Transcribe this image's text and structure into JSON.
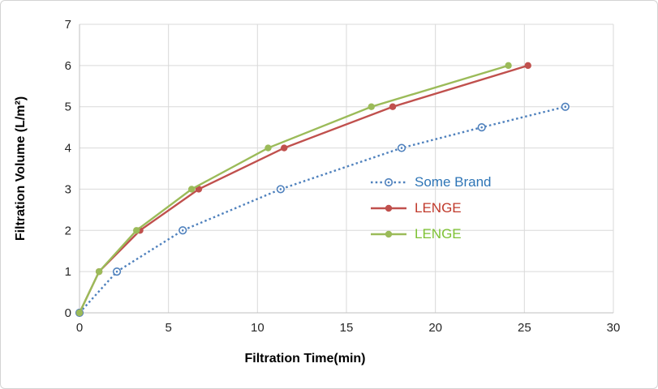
{
  "window": {
    "background": "#ffffff",
    "border_color": "#d3d3d3"
  },
  "chart_data": {
    "type": "line",
    "title": "",
    "xlabel": "Filtration Time(min)",
    "ylabel": "Filtration Volume (L/m²)",
    "xlim": [
      0,
      30
    ],
    "ylim": [
      0,
      7
    ],
    "x_ticks": [
      0,
      5,
      10,
      15,
      20,
      25,
      30
    ],
    "y_ticks": [
      0,
      1,
      2,
      3,
      4,
      5,
      6,
      7
    ],
    "grid": true,
    "legend_position": "inside-right-middle",
    "series": [
      {
        "name": "Some Brand",
        "color": "#4f81bd",
        "text_color": "#2e75b6",
        "line_style": "dotted",
        "marker": "open-circle",
        "points": [
          [
            0,
            0
          ],
          [
            2.1,
            1
          ],
          [
            5.8,
            2
          ],
          [
            11.3,
            3
          ],
          [
            18.1,
            4
          ],
          [
            22.6,
            4.5
          ],
          [
            27.3,
            5
          ]
        ]
      },
      {
        "name": "LENGE",
        "color": "#c0504d",
        "text_color": "#c0392b",
        "line_style": "solid",
        "marker": "filled-circle",
        "points": [
          [
            0,
            0
          ],
          [
            1.1,
            1
          ],
          [
            3.4,
            2
          ],
          [
            6.7,
            3
          ],
          [
            11.5,
            4
          ],
          [
            17.6,
            5
          ],
          [
            25.2,
            6
          ]
        ]
      },
      {
        "name": "LENGE",
        "color": "#9bbb59",
        "text_color": "#7ec234",
        "line_style": "solid",
        "marker": "filled-circle",
        "points": [
          [
            0,
            0
          ],
          [
            1.1,
            1
          ],
          [
            3.2,
            2
          ],
          [
            6.3,
            3
          ],
          [
            10.6,
            4
          ],
          [
            16.4,
            5
          ],
          [
            24.1,
            6
          ]
        ]
      }
    ],
    "colors": {
      "gridline": "#d9d9d9",
      "axis_line": "#bfbfbf",
      "tick_label": "#262626",
      "axis_title": "#000000"
    }
  }
}
